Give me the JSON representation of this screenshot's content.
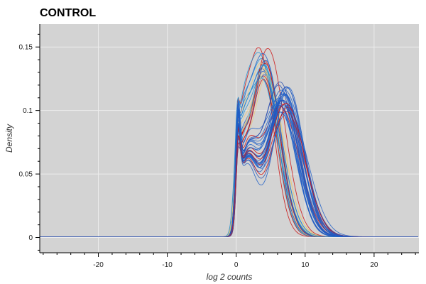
{
  "chart_data": {
    "type": "line",
    "title": "CONTROL",
    "xlabel": "log 2 counts",
    "ylabel": "Density",
    "xlim": [
      -28.5,
      26.5
    ],
    "ylim": [
      -0.012,
      0.168
    ],
    "x_ticks": [
      -20,
      -10,
      0,
      10,
      20
    ],
    "y_ticks": [
      0,
      0.05,
      0.1,
      0.15
    ],
    "y_tick_labels": [
      "0",
      "0.05",
      "0.1",
      "0.15"
    ],
    "grid": true,
    "background": "#d3d3d3",
    "grid_color": "#ececec",
    "series_colors": [
      "#cc1111",
      "#1f5fc8",
      "#1e90d6",
      "#e8c97a",
      "#2a4fb0"
    ],
    "families": [
      {
        "kind": "bimodal",
        "count": 30,
        "peak1_x": 0.2,
        "peak1_y": 0.115,
        "peak2_x": 7.0,
        "peak2_y": 0.122
      },
      {
        "kind": "early",
        "count": 22,
        "peak_x": 3.8,
        "peak_y": 0.15
      }
    ],
    "x_sample": [
      -28,
      -3,
      -1.5,
      -0.5,
      0,
      0.5,
      1,
      2,
      3,
      4,
      5,
      6,
      7,
      8,
      9,
      10,
      11,
      12,
      13,
      14,
      16,
      26
    ],
    "representative_curves": [
      {
        "name": "",
        "color": "#cc1111",
        "y": [
          0,
          0.001,
          0.004,
          0.03,
          0.118,
          0.11,
          0.095,
          0.13,
          0.148,
          0.15,
          0.13,
          0.09,
          0.045,
          0.014,
          0.004,
          0.001,
          0,
          0,
          0,
          0,
          0,
          0
        ]
      },
      {
        "name": "",
        "color": "#1f5fc8",
        "y": [
          0,
          0.001,
          0.004,
          0.025,
          0.075,
          0.08,
          0.083,
          0.09,
          0.1,
          0.11,
          0.118,
          0.122,
          0.12,
          0.105,
          0.075,
          0.04,
          0.015,
          0.004,
          0.001,
          0,
          0,
          0
        ]
      }
    ]
  }
}
